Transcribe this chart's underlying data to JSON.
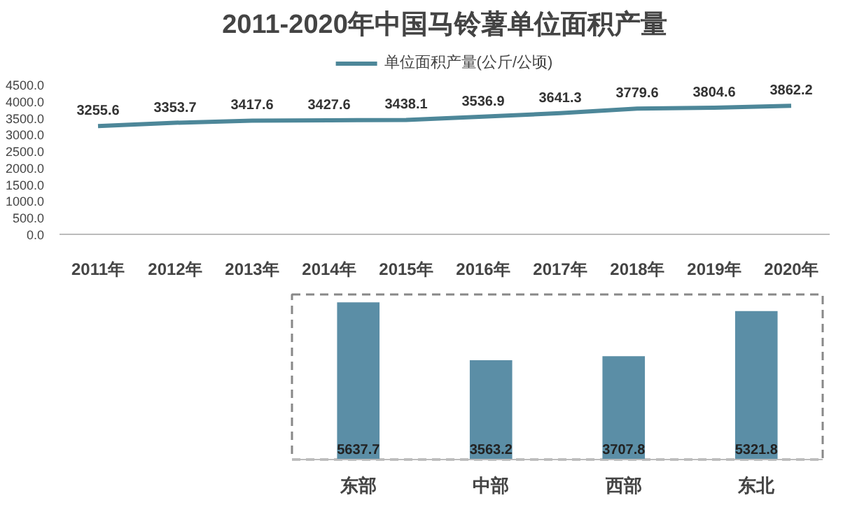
{
  "chart_data": [
    {
      "type": "line",
      "title": "2011-2020年中国马铃薯单位面积产量",
      "categories": [
        "2011年",
        "2012年",
        "2013年",
        "2014年",
        "2015年",
        "2016年",
        "2017年",
        "2018年",
        "2019年",
        "2020年"
      ],
      "series": [
        {
          "name": "单位面积产量(公斤/公顷)",
          "color": "#4d8799",
          "values": [
            3255.6,
            3353.7,
            3417.6,
            3427.6,
            3438.1,
            3536.9,
            3641.3,
            3779.6,
            3804.6,
            3862.2
          ]
        }
      ],
      "ylim": [
        0,
        4500
      ],
      "yticks": [
        {
          "value": 0,
          "label": "0.0"
        },
        {
          "value": 500,
          "label": "500.0"
        },
        {
          "value": 1000,
          "label": "1000.0"
        },
        {
          "value": 1500,
          "label": "1500.0"
        },
        {
          "value": 2000,
          "label": "2000.0"
        },
        {
          "value": 2500,
          "label": "2500.0"
        },
        {
          "value": 3000,
          "label": "3000.0"
        },
        {
          "value": 3500,
          "label": "3500.0"
        },
        {
          "value": 4000,
          "label": "4000.0"
        },
        {
          "value": 4500,
          "label": "4500.0"
        }
      ],
      "data_labels": true,
      "legend": "top",
      "grid": false
    },
    {
      "type": "bar",
      "categories": [
        "东部",
        "中部",
        "西部",
        "东北"
      ],
      "values": [
        5637.7,
        3563.2,
        3707.8,
        5321.8
      ],
      "color": "#5b8ea6",
      "data_labels": true
    }
  ]
}
